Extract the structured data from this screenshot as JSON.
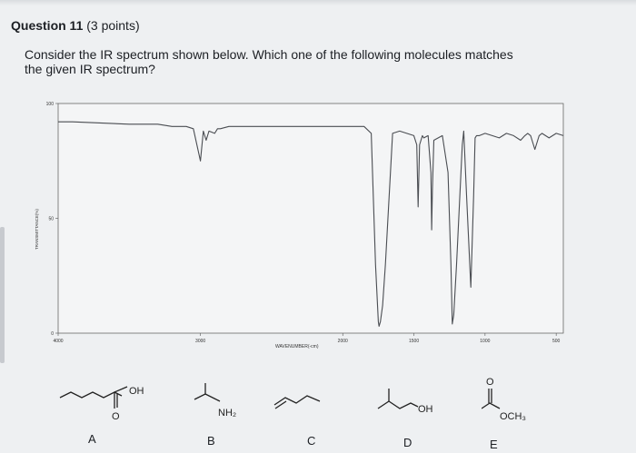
{
  "question": {
    "number_label": "Question 11",
    "points_label": "(3 points)",
    "text": "Consider the IR spectrum shown below. Which one of the following molecules matches the given IR spectrum?"
  },
  "chart_data": {
    "type": "line",
    "title": "",
    "xlabel": "WAVENUMBER(-cm)",
    "ylabel": "TRANSMITTANCE(%)",
    "y_ticks": [
      "100",
      "50",
      "0"
    ],
    "x_ticks": [
      "4000",
      "3000",
      "2000",
      "1500",
      "1000",
      "500"
    ],
    "xlim": [
      4000,
      450
    ],
    "ylim": [
      0,
      100
    ],
    "series": [
      {
        "x": [
          4000,
          3900,
          3500,
          3400,
          3300,
          3200,
          3100,
          3050,
          3000,
          2980,
          2960,
          2940,
          2900,
          2880,
          2860,
          2800,
          2700,
          2600,
          2400,
          2200,
          2000,
          1850,
          1800,
          1770,
          1750,
          1745,
          1735,
          1720,
          1700,
          1650,
          1600,
          1500,
          1480,
          1470,
          1460,
          1440,
          1430,
          1400,
          1380,
          1375,
          1370,
          1360,
          1300,
          1260,
          1240,
          1230,
          1220,
          1200,
          1160,
          1150,
          1130,
          1100,
          1080,
          1070,
          1060,
          1040,
          1000,
          950,
          900,
          850,
          800,
          750,
          720,
          700,
          680,
          650,
          620,
          600,
          550,
          500,
          450
        ],
        "y": [
          92,
          92,
          91,
          91,
          91,
          90,
          90,
          89,
          75,
          88,
          84,
          88,
          87,
          89,
          89,
          90,
          90,
          90,
          90,
          90,
          90,
          90,
          87,
          30,
          5,
          3,
          5,
          12,
          30,
          87,
          88,
          86,
          82,
          55,
          82,
          86,
          85,
          86,
          70,
          45,
          62,
          84,
          86,
          70,
          30,
          4,
          8,
          30,
          82,
          88,
          60,
          20,
          60,
          85,
          86,
          86,
          87,
          86,
          85,
          87,
          86,
          84,
          86,
          87,
          86,
          80,
          86,
          87,
          85,
          87,
          86
        ]
      }
    ]
  },
  "options": [
    {
      "letter": "A",
      "label": "OH",
      "sublabel": "O"
    },
    {
      "letter": "B",
      "label": "NH₂"
    },
    {
      "letter": "C"
    },
    {
      "letter": "D",
      "label": "OH"
    },
    {
      "letter": "E",
      "label": "OCH₃",
      "sublabel": "O"
    }
  ]
}
